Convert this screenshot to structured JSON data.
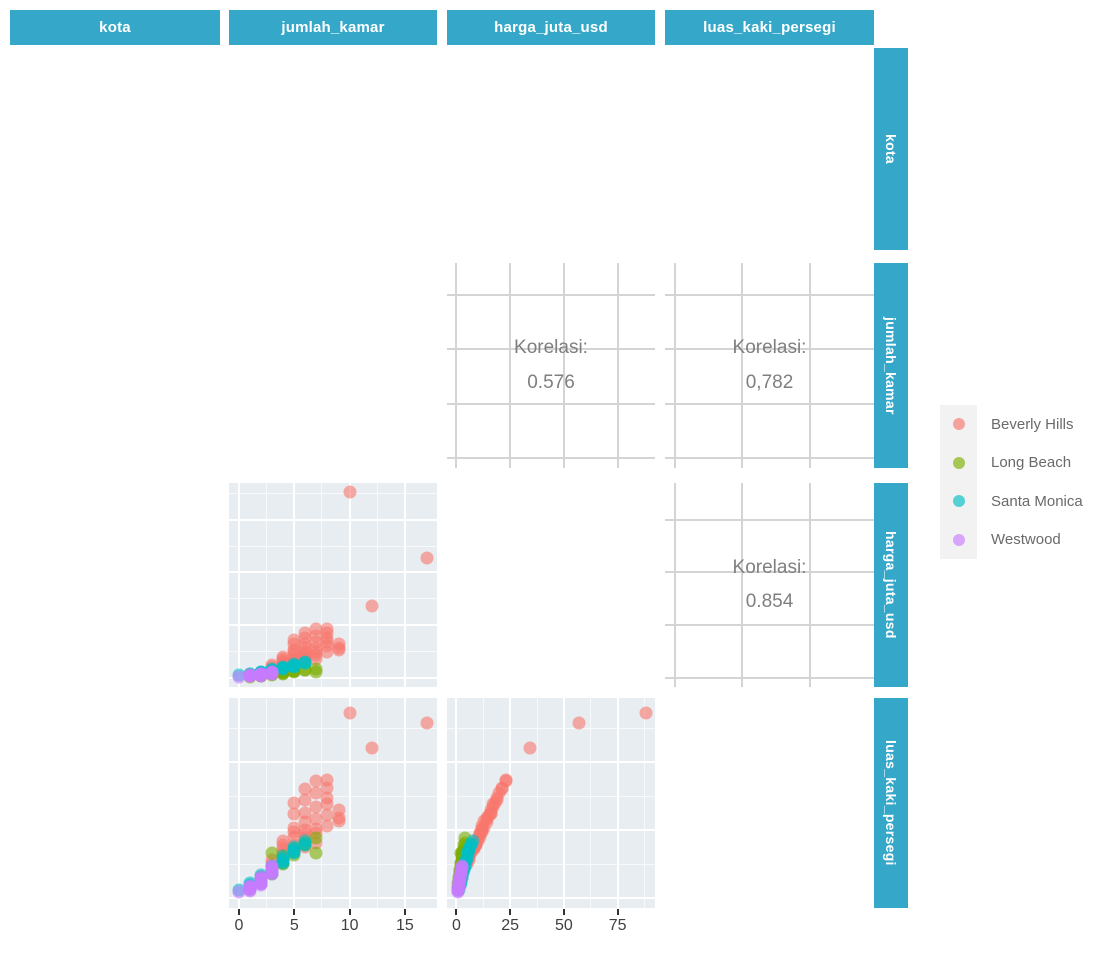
{
  "ui": {
    "strip_color": "#35a8c9",
    "correlation_label": "Korelasi:"
  },
  "legend": {
    "items": [
      {
        "label": "Beverly Hills",
        "color": "#F8766D"
      },
      {
        "label": "Long Beach",
        "color": "#7CAE00"
      },
      {
        "label": "Santa Monica",
        "color": "#00BFC4"
      },
      {
        "label": "Westwood",
        "color": "#C77CFF"
      }
    ]
  },
  "chart_data": {
    "type": "scatter-matrix",
    "variables": [
      "kota",
      "jumlah_kamar",
      "harga_juta_usd",
      "luas_kaki_persegi"
    ],
    "correlations": [
      {
        "x": "harga_juta_usd",
        "y": "jumlah_kamar",
        "value": "0.576"
      },
      {
        "x": "luas_kaki_persegi",
        "y": "jumlah_kamar",
        "value": "0,782"
      },
      {
        "x": "luas_kaki_persegi",
        "y": "harga_juta_usd",
        "value": "0.854"
      }
    ],
    "axes": {
      "jumlah_kamar": {
        "lim": [
          -0.9,
          17.9
        ],
        "ticks": [
          0,
          5,
          10,
          15
        ],
        "minor": [
          2.5,
          7.5,
          12.5
        ]
      },
      "harga_juta_usd": {
        "lim": [
          -4.4,
          92.4
        ],
        "ticks": [
          0,
          25,
          50,
          75
        ],
        "minor": [
          12.5,
          37.5,
          62.5,
          87.5
        ]
      },
      "luas_kaki_persegi": {
        "lim": [
          -700,
          14700
        ],
        "ticks": [
          0,
          5000,
          10000
        ],
        "minor": [
          2500,
          7500,
          12500
        ]
      }
    },
    "point_columns": [
      "jumlah_kamar",
      "harga_juta_usd",
      "luas_kaki_persegi"
    ],
    "series": [
      {
        "name": "Beverly Hills",
        "color": "#F8766D",
        "points": [
          [
            3,
            5,
            2500
          ],
          [
            3,
            6,
            2800
          ],
          [
            4,
            6,
            3000
          ],
          [
            4,
            7,
            3300
          ],
          [
            4,
            8,
            3600
          ],
          [
            4,
            9,
            3900
          ],
          [
            4,
            10,
            4200
          ],
          [
            5,
            7,
            3400
          ],
          [
            5,
            8,
            3700
          ],
          [
            5,
            9,
            3900
          ],
          [
            5,
            11,
            4500
          ],
          [
            5,
            12,
            4900
          ],
          [
            5,
            13,
            5200
          ],
          [
            5,
            16,
            6200
          ],
          [
            5,
            18,
            7000
          ],
          [
            6,
            8,
            3800
          ],
          [
            6,
            9,
            4000
          ],
          [
            6,
            10,
            4400
          ],
          [
            6,
            11,
            4700
          ],
          [
            6,
            12,
            5000
          ],
          [
            6,
            14,
            5600
          ],
          [
            6,
            16,
            6300
          ],
          [
            6,
            19,
            7200
          ],
          [
            6,
            21,
            8000
          ],
          [
            7,
            9,
            4100
          ],
          [
            7,
            11,
            4800
          ],
          [
            7,
            12,
            5100
          ],
          [
            7,
            14,
            5800
          ],
          [
            7,
            17,
            6700
          ],
          [
            7,
            20,
            7700
          ],
          [
            7,
            23,
            8600
          ],
          [
            8,
            12,
            5300
          ],
          [
            8,
            15,
            6100
          ],
          [
            8,
            17,
            6900
          ],
          [
            8,
            19,
            7400
          ],
          [
            8,
            21,
            8100
          ],
          [
            8,
            23,
            8700
          ],
          [
            9,
            13,
            5700
          ],
          [
            9,
            14,
            5900
          ],
          [
            9,
            16,
            6500
          ],
          [
            10,
            88,
            13600
          ],
          [
            17,
            57,
            12900
          ],
          [
            12,
            34,
            11000
          ]
        ]
      },
      {
        "name": "Long Beach",
        "color": "#7CAE00",
        "points": [
          [
            1,
            0.5,
            700
          ],
          [
            1,
            0.8,
            850
          ],
          [
            2,
            0.9,
            1100
          ],
          [
            2,
            1.0,
            1200
          ],
          [
            2,
            1.1,
            1300
          ],
          [
            2,
            1.2,
            1400
          ],
          [
            2,
            1.4,
            1550
          ],
          [
            3,
            1.5,
            1800
          ],
          [
            3,
            1.6,
            1900
          ],
          [
            3,
            1.7,
            2000
          ],
          [
            3,
            1.8,
            2100
          ],
          [
            3,
            2.0,
            2300
          ],
          [
            3,
            2.1,
            3300
          ],
          [
            4,
            2.0,
            2500
          ],
          [
            4,
            2.2,
            2600
          ],
          [
            4,
            2.4,
            2750
          ],
          [
            4,
            2.5,
            2900
          ],
          [
            4,
            2.8,
            3100
          ],
          [
            5,
            2.7,
            3200
          ],
          [
            5,
            3.0,
            3400
          ],
          [
            5,
            3.1,
            3500
          ],
          [
            5,
            3.3,
            3600
          ],
          [
            6,
            3.6,
            3900
          ],
          [
            6,
            3.9,
            4100
          ],
          [
            7,
            2.6,
            3300
          ],
          [
            7,
            4.2,
            4400
          ]
        ]
      },
      {
        "name": "Santa Monica",
        "color": "#00BFC4",
        "points": [
          [
            0,
            1.2,
            600
          ],
          [
            1,
            1.5,
            900
          ],
          [
            1,
            1.8,
            1000
          ],
          [
            1,
            2.0,
            1100
          ],
          [
            2,
            2.0,
            1300
          ],
          [
            2,
            2.2,
            1400
          ],
          [
            2,
            2.4,
            1500
          ],
          [
            2,
            2.6,
            1600
          ],
          [
            2,
            2.8,
            1700
          ],
          [
            3,
            3.0,
            1900
          ],
          [
            3,
            3.2,
            2000
          ],
          [
            3,
            3.4,
            2100
          ],
          [
            3,
            3.6,
            2200
          ],
          [
            3,
            3.8,
            2300
          ],
          [
            3,
            4.0,
            2400
          ],
          [
            4,
            4.0,
            2600
          ],
          [
            4,
            4.4,
            2700
          ],
          [
            4,
            4.6,
            2800
          ],
          [
            4,
            4.8,
            2900
          ],
          [
            4,
            5.2,
            3100
          ],
          [
            5,
            5.0,
            3300
          ],
          [
            5,
            5.6,
            3400
          ],
          [
            5,
            5.8,
            3500
          ],
          [
            5,
            6.0,
            3600
          ],
          [
            5,
            6.5,
            3800
          ],
          [
            6,
            6.8,
            3900
          ],
          [
            6,
            7.0,
            4000
          ],
          [
            6,
            7.6,
            4200
          ]
        ]
      },
      {
        "name": "Westwood",
        "color": "#C77CFF",
        "points": [
          [
            0,
            0.5,
            450
          ],
          [
            1,
            0.6,
            550
          ],
          [
            1,
            0.7,
            600
          ],
          [
            1,
            0.8,
            700
          ],
          [
            1,
            0.9,
            750
          ],
          [
            1,
            1.0,
            860
          ],
          [
            1,
            1.1,
            820
          ],
          [
            1,
            1.2,
            900
          ],
          [
            2,
            1.0,
            980
          ],
          [
            2,
            1.1,
            1050
          ],
          [
            2,
            1.2,
            1100
          ],
          [
            2,
            1.2,
            1150
          ],
          [
            2,
            1.3,
            1200
          ],
          [
            2,
            1.4,
            1300
          ],
          [
            2,
            1.4,
            1280
          ],
          [
            2,
            1.5,
            1350
          ],
          [
            2,
            1.6,
            1450
          ],
          [
            2,
            1.6,
            1420
          ],
          [
            2,
            1.7,
            1500
          ],
          [
            2,
            1.8,
            1600
          ],
          [
            3,
            1.9,
            1800
          ],
          [
            3,
            2.0,
            1900
          ],
          [
            3,
            2.1,
            1950
          ],
          [
            3,
            2.2,
            2000
          ],
          [
            3,
            2.3,
            2100
          ],
          [
            3,
            2.4,
            2250
          ],
          [
            3,
            2.5,
            2300
          ],
          [
            3,
            2.6,
            2400
          ]
        ]
      }
    ]
  }
}
